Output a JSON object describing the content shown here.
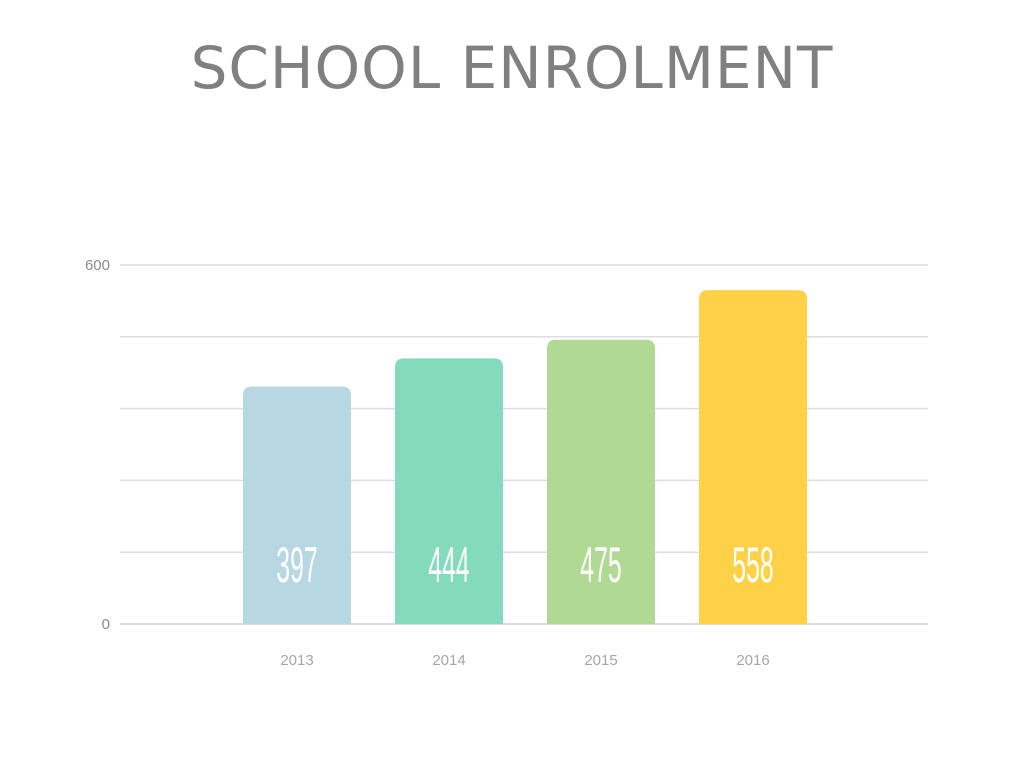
{
  "chart_data": {
    "type": "bar",
    "title": "SCHOOL ENROLMENT",
    "categories": [
      "2013",
      "2014",
      "2015",
      "2016"
    ],
    "values": [
      397,
      444,
      475,
      558
    ],
    "value_labels": [
      "397",
      "444",
      "475",
      "558"
    ],
    "colors": [
      "#b7d8e2",
      "#84dbbc",
      "#b0d993",
      "#ffd146"
    ],
    "ylim": [
      0,
      600
    ],
    "y_ticks_labeled": [
      "0",
      "600"
    ],
    "y_gridlines": [
      0,
      120,
      240,
      360,
      480,
      600
    ],
    "grid": true,
    "legend": "none"
  }
}
